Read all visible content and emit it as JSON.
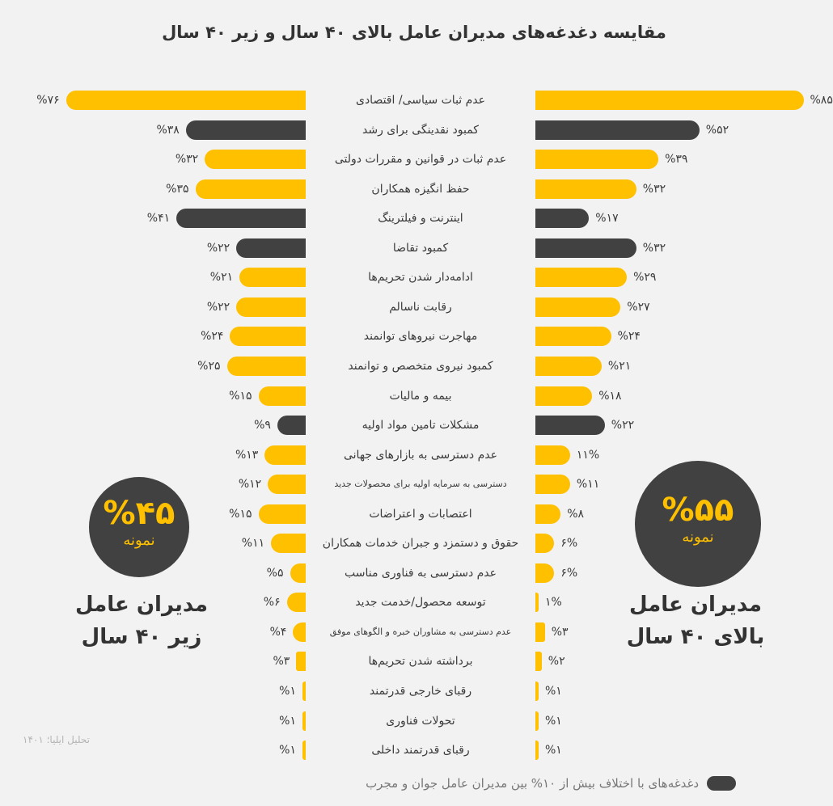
{
  "title": "مقایسه دغدغه‌های مدیران عامل بالای ۴۰ سال و زیر ۴۰ سال",
  "colors": {
    "highlight": "#414141",
    "normal": "#ffc000"
  },
  "chart_data": {
    "type": "bar",
    "orientation": "diverging-horizontal",
    "title": "مقایسه دغدغه‌های مدیران عامل بالای ۴۰ سال و زیر ۴۰ سال",
    "categories": [
      "عدم ثبات سیاسی/ اقتصادی",
      "کمبود نقدینگی برای رشد",
      "عدم ثبات در قوانین و مقررات دولتی",
      "حفظ انگیزه همکاران",
      "اینترنت و فیلترینگ",
      "کمبود تقاضا",
      "ادامه‌دار شدن تحریم‌ها",
      "رقابت ناسالم",
      "مهاجرت نیروهای توانمند",
      "کمبود نیروی متخصص و توانمند",
      "بیمه و مالیات",
      "مشکلات تامین مواد اولیه",
      "عدم دسترسی به بازارهای جهانی",
      "دسترسی به سرمایه اولیه برای محصولات جدید",
      "اعتصابات و اعتراضات",
      "حقوق و دستمزد و جبران خدمات همکاران",
      "عدم دسترسی به فناوری مناسب",
      "توسعه محصول/خدمت جدید",
      "عدم دسترسی به مشاوران خبره و الگوهای موفق",
      "برداشته شدن تحریم‌ها",
      "رقبای خارجی قدرتمند",
      "تحولات فناوری",
      "رقبای قدرتمند داخلی"
    ],
    "small_label_indices": [
      13,
      18
    ],
    "highlighted_indices": [
      1,
      4,
      5,
      11
    ],
    "series": [
      {
        "name": "مدیران عامل زیر ۴۰ سال",
        "side": "left",
        "values": [
          76,
          38,
          32,
          35,
          41,
          22,
          21,
          22,
          24,
          25,
          15,
          9,
          13,
          12,
          15,
          11,
          5,
          6,
          4,
          3,
          1,
          1,
          1
        ],
        "labels": [
          "%۷۶",
          "%۳۸",
          "%۳۲",
          "%۳۵",
          "%۴۱",
          "%۲۲",
          "%۲۱",
          "%۲۲",
          "%۲۴",
          "%۲۵",
          "%۱۵",
          "%۹",
          "%۱۳",
          "%۱۲",
          "%۱۵",
          "%۱۱",
          "%۵",
          "%۶",
          "%۴",
          "%۳",
          "%۱",
          "%۱",
          "%۱"
        ]
      },
      {
        "name": "مدیران عامل بالای ۴۰ سال",
        "side": "right",
        "values": [
          85,
          52,
          39,
          32,
          17,
          32,
          29,
          27,
          24,
          21,
          18,
          22,
          11,
          11,
          8,
          6,
          6,
          1,
          3,
          2,
          1,
          1,
          1
        ],
        "labels": [
          "%۸۵",
          "%۵۲",
          "%۳۹",
          "%۳۲",
          "%۱۷",
          "%۳۲",
          "%۲۹",
          "%۲۷",
          "%۲۴",
          "%۲۱",
          "%۱۸",
          "%۲۲",
          "۱۱%",
          "%۱۱",
          "%۸",
          "۶%",
          "۶%",
          "۱%",
          "%۳",
          "%۲",
          "%۱",
          "%۱",
          "%۱"
        ]
      }
    ],
    "legend": "دغدغه‌های با اختلاف بیش از ۱۰% بین مدیران عامل جوان و مجرب"
  },
  "left_group": {
    "percent": "%۴۵",
    "sample": "نمونه",
    "line1": "مدیران عامل",
    "line2": "زیر ۴۰ سال"
  },
  "right_group": {
    "percent": "%۵۵",
    "sample": "نمونه",
    "line1": "مدیران عامل",
    "line2": "بالای ۴۰ سال"
  },
  "source": "تحلیل ایلیا؛ ۱۴۰۱"
}
